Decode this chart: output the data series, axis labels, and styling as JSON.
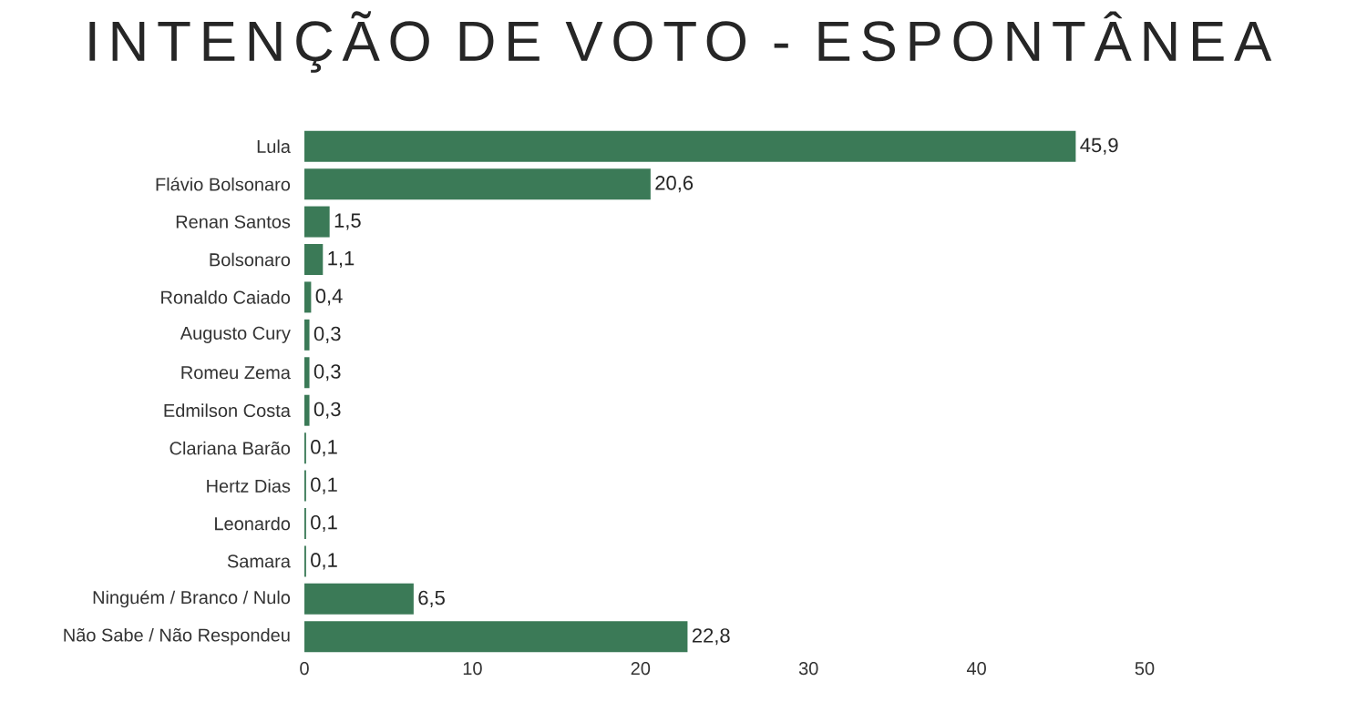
{
  "chart_data": {
    "type": "bar",
    "orientation": "horizontal",
    "title": "INTENÇÃO DE VOTO - ESPONTÂNEA",
    "categories": [
      "Lula",
      "Flávio Bolsonaro",
      "Renan Santos",
      "Bolsonaro",
      "Ronaldo Caiado",
      "Augusto Cury",
      "Romeu Zema",
      "Edmilson Costa",
      "Clariana Barão",
      "Hertz Dias",
      "Leonardo",
      "Samara",
      "Ninguém / Branco / Nulo",
      "Não Sabe / Não Respondeu"
    ],
    "values": [
      45.9,
      20.6,
      1.5,
      1.1,
      0.4,
      0.3,
      0.3,
      0.3,
      0.1,
      0.1,
      0.1,
      0.1,
      6.5,
      22.8
    ],
    "value_labels": [
      "45,9",
      "20,6",
      "1,5",
      "1,1",
      "0,4",
      "0,3",
      "0,3",
      "0,3",
      "0,1",
      "0,1",
      "0,1",
      "0,1",
      "6,5",
      "22,8"
    ],
    "color": "#3b7a57",
    "xlim": [
      0,
      50
    ],
    "xticks": [
      0,
      10,
      20,
      30,
      40,
      50
    ]
  }
}
